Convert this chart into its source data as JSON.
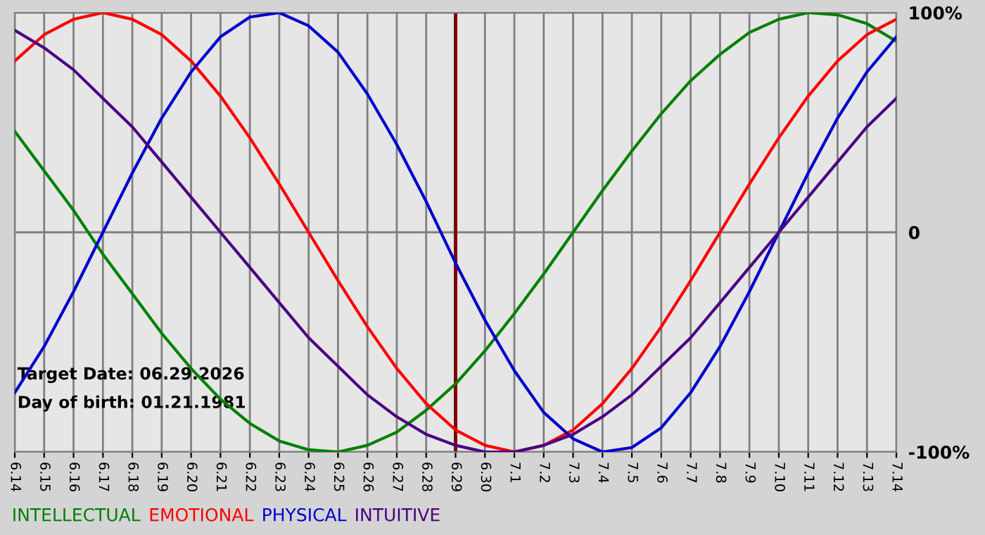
{
  "chart_data": {
    "type": "line",
    "categories": [
      "6.14",
      "6.15",
      "6.16",
      "6.17",
      "6.18",
      "6.19",
      "6.20",
      "6.21",
      "6.22",
      "6.23",
      "6.24",
      "6.25",
      "6.26",
      "6.27",
      "6.28",
      "6.29",
      "6.30",
      "7.1",
      "7.2",
      "7.3",
      "7.4",
      "7.5",
      "7.6",
      "7.7",
      "7.8",
      "7.9",
      "7.10",
      "7.11",
      "7.12",
      "7.13",
      "7.14"
    ],
    "series": [
      {
        "name": "INTELLECTUAL",
        "color": "#008000",
        "values": [
          46,
          28,
          10,
          -10,
          -28,
          -46,
          -62,
          -76,
          -87,
          -95,
          -99,
          -100,
          -97,
          -91,
          -81,
          -69,
          -54,
          -37,
          -19,
          0,
          19,
          37,
          54,
          69,
          81,
          91,
          97,
          100,
          99,
          95,
          87
        ]
      },
      {
        "name": "EMOTIONAL",
        "color": "#ff0000",
        "values": [
          78,
          90,
          97,
          100,
          97,
          90,
          78,
          62,
          43,
          22,
          0,
          -22,
          -43,
          -62,
          -78,
          -90,
          -97,
          -100,
          -97,
          -90,
          -78,
          -62,
          -43,
          -22,
          0,
          22,
          43,
          62,
          78,
          90,
          97
        ]
      },
      {
        "name": "PHYSICAL",
        "color": "#0000cc",
        "values": [
          -73,
          -52,
          -27,
          0,
          27,
          52,
          73,
          89,
          98,
          100,
          94,
          82,
          63,
          40,
          14,
          -14,
          -40,
          -63,
          -82,
          -94,
          -100,
          -98,
          -89,
          -73,
          -52,
          -27,
          0,
          27,
          52,
          73,
          89
        ]
      },
      {
        "name": "INTUITIVE",
        "color": "#4b0082",
        "values": [
          92,
          84,
          74,
          61,
          48,
          32,
          16,
          0,
          -16,
          -32,
          -48,
          -61,
          -74,
          -84,
          -92,
          -97,
          -100,
          -100,
          -97,
          -92,
          -84,
          -74,
          -61,
          -48,
          -32,
          -16,
          0,
          16,
          32,
          48,
          61
        ]
      }
    ],
    "ylim": [
      -100,
      100
    ],
    "yticks": [
      {
        "value": 100,
        "label": "100%"
      },
      0,
      {
        "value": -100,
        "label": "-100%"
      }
    ],
    "grid": true,
    "legend": "bottom",
    "marker": "none",
    "line_style": "solid",
    "ref_lines": [
      {
        "axis": "x",
        "value": "6.29",
        "label": null,
        "color": "#800000"
      }
    ],
    "annotations": [
      "Target Date: 06.29.2026",
      "Day of birth: 01.21.1981"
    ]
  }
}
